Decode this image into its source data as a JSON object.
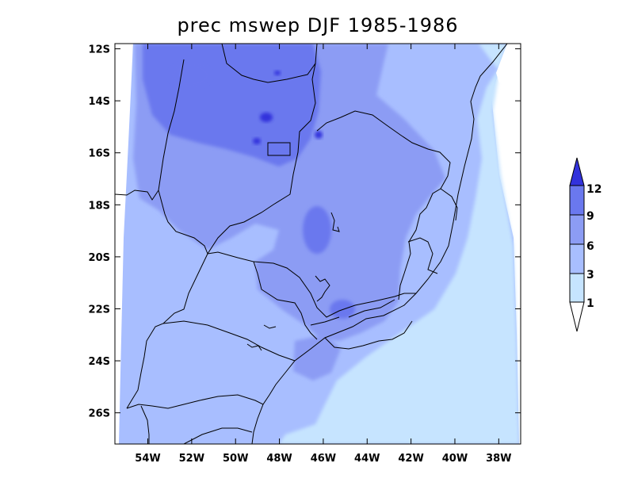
{
  "title": "prec mswep DJF 1985-1986",
  "colors": {
    "lt1": "#ffffff",
    "c1_3": "#c6e4ff",
    "c3_6": "#a8beff",
    "c6_9": "#8c9cf4",
    "c9_12": "#6a78ee",
    "gt12": "#3232dc"
  },
  "chart_data": {
    "type": "heatmap",
    "title": "prec mswep DJF 1985-1986",
    "x_range": [
      -55.5,
      -37
    ],
    "y_range": [
      -27.2,
      -11.8
    ],
    "x_ticks": [
      {
        "value": -54,
        "label": "54W"
      },
      {
        "value": -52,
        "label": "52W"
      },
      {
        "value": -50,
        "label": "50W"
      },
      {
        "value": -48,
        "label": "48W"
      },
      {
        "value": -46,
        "label": "46W"
      },
      {
        "value": -44,
        "label": "44W"
      },
      {
        "value": -42,
        "label": "42W"
      },
      {
        "value": -40,
        "label": "40W"
      },
      {
        "value": -38,
        "label": "38W"
      }
    ],
    "y_ticks": [
      {
        "value": -12,
        "label": "12S"
      },
      {
        "value": -14,
        "label": "14S"
      },
      {
        "value": -16,
        "label": "16S"
      },
      {
        "value": -18,
        "label": "18S"
      },
      {
        "value": -20,
        "label": "20S"
      },
      {
        "value": -22,
        "label": "22S"
      },
      {
        "value": -24,
        "label": "24S"
      },
      {
        "value": -26,
        "label": "26S"
      }
    ],
    "colorbar": {
      "levels": [
        1,
        3,
        6,
        9,
        12
      ],
      "labels": [
        "1",
        "3",
        "6",
        "9",
        "12"
      ],
      "placement": "right"
    }
  }
}
